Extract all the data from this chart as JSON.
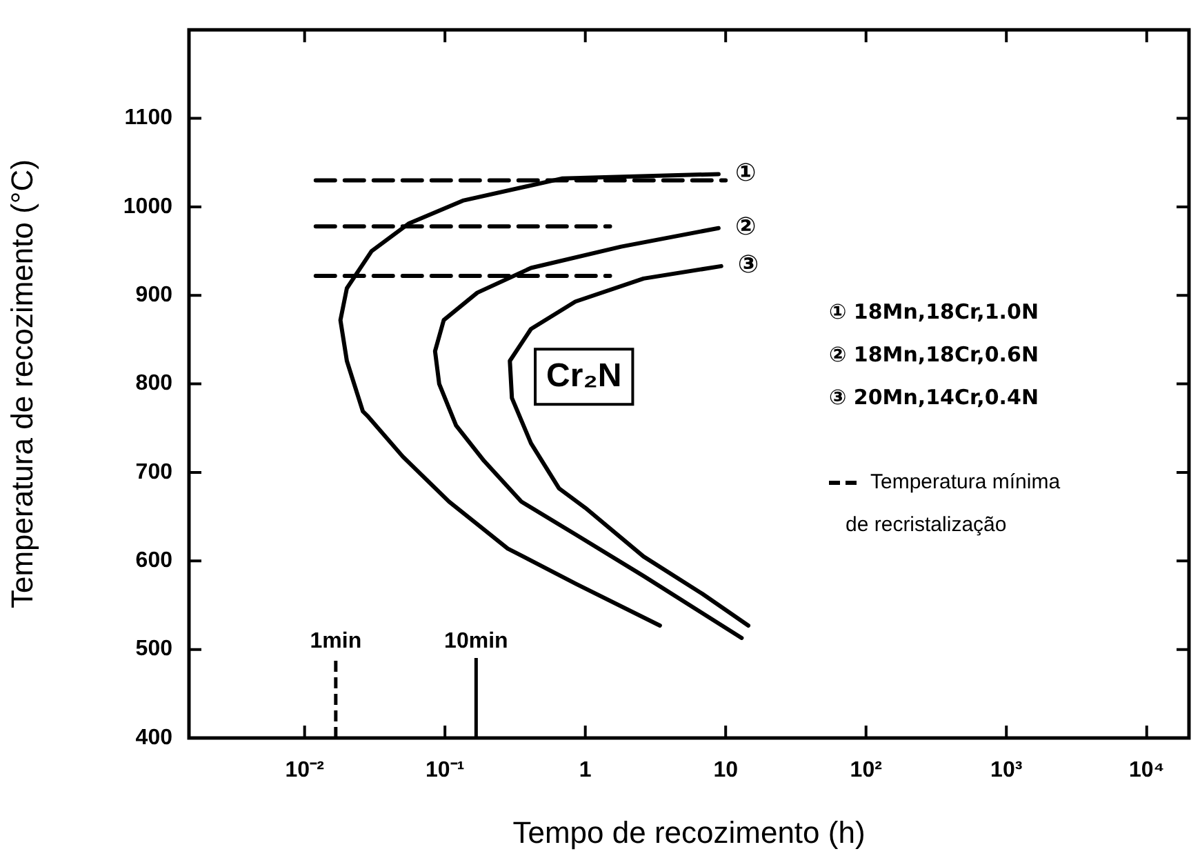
{
  "chart_data": {
    "type": "line",
    "xlabel": "Tempo de recozimento (h)",
    "ylabel": "Temperatura de recozimento (°C)",
    "log": "x",
    "xlim": [
      0.0015,
      20000
    ],
    "ylim": [
      400,
      1200
    ],
    "xticks": [
      {
        "value": 0.01,
        "label": "10⁻²"
      },
      {
        "value": 0.1,
        "label": "10⁻¹"
      },
      1,
      10,
      {
        "value": 100,
        "label": "10²"
      },
      {
        "value": 1000,
        "label": "10³"
      },
      {
        "value": 10000,
        "label": "10⁴"
      }
    ],
    "yticks": [
      400,
      500,
      600,
      700,
      800,
      900,
      1000,
      1100
    ],
    "grid": false,
    "marker": "none",
    "legend": "right",
    "series": [
      {
        "color": "#000000",
        "line_style": "solid",
        "x": [
          8.9,
          0.68,
          0.134,
          0.055,
          0.03,
          0.02,
          0.018,
          0.02,
          0.026,
          0.028,
          0.05,
          0.107,
          0.28,
          0.86,
          3.4
        ],
        "values": [
          1037,
          1032,
          1007,
          981,
          950,
          908,
          872,
          826,
          769,
          764,
          718,
          667,
          614,
          574,
          527
        ]
      },
      {
        "color": "#000000",
        "line_style": "solid",
        "x": [
          8.9,
          1.8,
          0.41,
          0.17,
          0.098,
          0.085,
          0.091,
          0.12,
          0.19,
          0.35,
          0.85,
          2.6,
          13
        ],
        "values": [
          976,
          955,
          931,
          903,
          872,
          837,
          800,
          753,
          713,
          667,
          630,
          583,
          513
        ]
      },
      {
        "color": "#000000",
        "line_style": "solid",
        "x": [
          9.3,
          2.6,
          0.85,
          0.41,
          0.29,
          0.3,
          0.41,
          0.65,
          1.0,
          2.6,
          6.8,
          14.5
        ],
        "values": [
          933,
          919,
          893,
          862,
          826,
          784,
          733,
          682,
          660,
          605,
          563,
          527
        ]
      },
      {
        "name": "Temperatura mínima de recristalização",
        "color": "#000000",
        "line_style": "dashed",
        "x": [
          0.012,
          10
        ],
        "values": [
          1030,
          1030
        ]
      },
      {
        "color": "#000000",
        "line_style": "dashed",
        "x": [
          0.012,
          1.5
        ],
        "values": [
          978,
          978
        ]
      },
      {
        "color": "#000000",
        "line_style": "dashed",
        "x": [
          0.012,
          1.5
        ],
        "values": [
          922,
          922
        ]
      }
    ],
    "ref_lines": [
      {
        "axis": "x",
        "value": 0.01667,
        "label": "1min",
        "line_style": "dashed"
      },
      {
        "axis": "x",
        "value": 0.1667,
        "label": "10min",
        "line_style": "solid"
      }
    ],
    "annotations": [
      "①",
      "②",
      "③",
      "Cr₂N",
      "① 18Mn,18Cr,1.0N",
      "② 18Mn,18Cr,0.6N",
      "③ 20Mn,14Cr,0.4N"
    ]
  }
}
